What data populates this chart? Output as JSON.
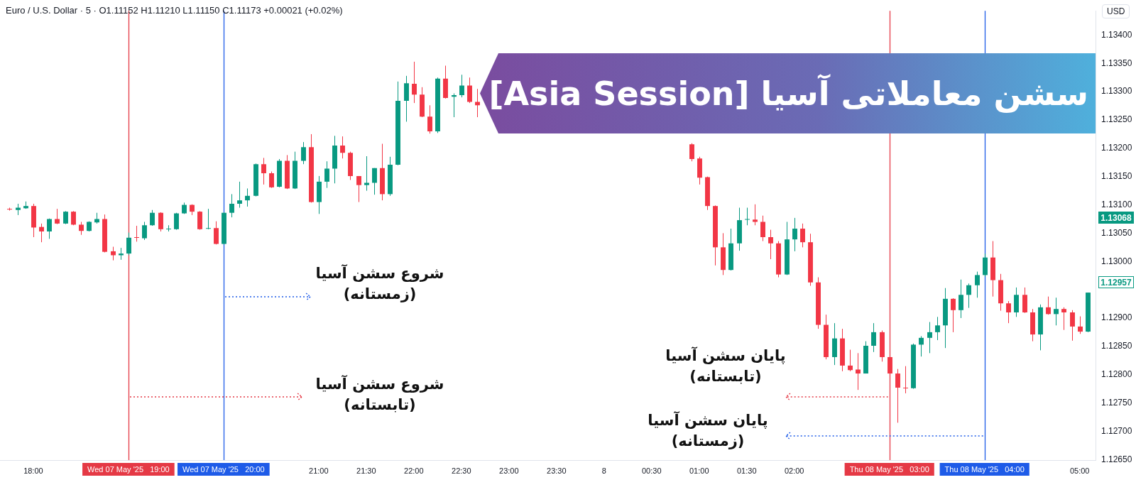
{
  "chart_data": {
    "type": "candlestick",
    "title": "سشن معاملاتی آسیا [Asia Session]",
    "subtitle": "Euro / U.S. Dollar · 5 · O1.11152 H1.11210 L1.11150 C1.11173 +0.00021 (+0.02%)",
    "x": [
      "2025-05-07T17:45",
      "2025-05-07T17:50",
      "2025-05-07T17:55",
      "2025-05-07T18:00",
      "2025-05-07T18:05",
      "2025-05-07T18:10",
      "2025-05-07T18:15",
      "2025-05-07T18:20",
      "2025-05-07T18:25",
      "2025-05-07T18:30",
      "2025-05-07T18:35",
      "2025-05-07T18:40",
      "2025-05-07T18:45",
      "2025-05-07T18:50",
      "2025-05-07T18:55",
      "2025-05-07T19:00",
      "2025-05-07T19:05",
      "2025-05-07T19:10",
      "2025-05-07T19:15",
      "2025-05-07T19:20",
      "2025-05-07T19:25",
      "2025-05-07T19:30",
      "2025-05-07T19:35",
      "2025-05-07T19:40",
      "2025-05-07T19:45",
      "2025-05-07T19:50",
      "2025-05-07T19:55",
      "2025-05-07T20:00",
      "2025-05-07T20:05",
      "2025-05-07T20:10",
      "2025-05-07T20:15",
      "2025-05-07T20:20",
      "2025-05-07T20:25",
      "2025-05-07T20:30",
      "2025-05-07T20:35",
      "2025-05-07T20:40",
      "2025-05-07T20:45",
      "2025-05-07T20:50",
      "2025-05-07T20:55",
      "2025-05-07T21:00",
      "2025-05-07T21:05",
      "2025-05-07T21:10",
      "2025-05-07T21:15",
      "2025-05-07T21:20",
      "2025-05-07T21:25",
      "2025-05-07T21:30",
      "2025-05-07T21:35",
      "2025-05-07T21:40",
      "2025-05-07T21:45",
      "2025-05-07T21:50",
      "2025-05-07T21:55",
      "2025-05-07T22:00",
      "2025-05-07T22:05",
      "2025-05-07T22:10",
      "2025-05-07T22:15",
      "2025-05-07T22:20",
      "2025-05-07T22:25",
      "2025-05-07T22:30",
      "2025-05-07T22:35",
      "2025-05-07T22:40",
      "2025-05-08T00:55",
      "2025-05-08T01:00",
      "2025-05-08T01:05",
      "2025-05-08T01:10",
      "2025-05-08T01:15",
      "2025-05-08T01:20",
      "2025-05-08T01:25",
      "2025-05-08T01:30",
      "2025-05-08T01:35",
      "2025-05-08T01:40",
      "2025-05-08T01:45",
      "2025-05-08T01:50",
      "2025-05-08T01:55",
      "2025-05-08T02:00",
      "2025-05-08T02:05",
      "2025-05-08T02:10",
      "2025-05-08T02:15",
      "2025-05-08T02:20",
      "2025-05-08T02:25",
      "2025-05-08T02:30",
      "2025-05-08T02:35",
      "2025-05-08T02:40",
      "2025-05-08T02:45",
      "2025-05-08T02:50",
      "2025-05-08T02:55",
      "2025-05-08T03:00",
      "2025-05-08T03:05",
      "2025-05-08T03:10",
      "2025-05-08T03:15",
      "2025-05-08T03:20",
      "2025-05-08T03:25",
      "2025-05-08T03:30",
      "2025-05-08T03:35",
      "2025-05-08T03:40",
      "2025-05-08T03:45",
      "2025-05-08T03:50",
      "2025-05-08T03:55",
      "2025-05-08T04:00",
      "2025-05-08T04:05",
      "2025-05-08T04:10",
      "2025-05-08T04:15",
      "2025-05-08T04:20",
      "2025-05-08T04:25",
      "2025-05-08T04:30",
      "2025-05-08T04:35",
      "2025-05-08T04:40",
      "2025-05-08T04:45",
      "2025-05-08T04:50",
      "2025-05-08T04:55",
      "2025-05-08T05:00",
      "2025-05-08T05:05"
    ],
    "ohlc": [
      [
        1.13093,
        1.13095,
        1.1309,
        1.13092
      ],
      [
        1.13091,
        1.13102,
        1.13082,
        1.13095
      ],
      [
        1.13094,
        1.13106,
        1.13093,
        1.13098
      ],
      [
        1.13098,
        1.13102,
        1.13043,
        1.1306
      ],
      [
        1.13061,
        1.13067,
        1.13034,
        1.13053
      ],
      [
        1.13053,
        1.13076,
        1.1304,
        1.13075
      ],
      [
        1.13075,
        1.13093,
        1.13066,
        1.13067
      ],
      [
        1.13067,
        1.13089,
        1.13066,
        1.13088
      ],
      [
        1.13088,
        1.13089,
        1.13064,
        1.13065
      ],
      [
        1.13065,
        1.1307,
        1.13047,
        1.13054
      ],
      [
        1.13054,
        1.13071,
        1.13053,
        1.1307
      ],
      [
        1.13069,
        1.13086,
        1.13067,
        1.13075
      ],
      [
        1.13075,
        1.13083,
        1.13016,
        1.13017
      ],
      [
        1.13018,
        1.13026,
        1.13002,
        1.13011
      ],
      [
        1.13011,
        1.13024,
        1.13003,
        1.13014
      ],
      [
        1.13014,
        1.13051,
        1.13011,
        1.13042
      ],
      [
        1.13043,
        1.13063,
        1.13035,
        1.13042
      ],
      [
        1.13041,
        1.1307,
        1.13038,
        1.13064
      ],
      [
        1.13064,
        1.13091,
        1.13063,
        1.13086
      ],
      [
        1.13086,
        1.13087,
        1.13053,
        1.13057
      ],
      [
        1.13057,
        1.13064,
        1.13053,
        1.13058
      ],
      [
        1.13057,
        1.13086,
        1.13056,
        1.13085
      ],
      [
        1.13085,
        1.13104,
        1.13084,
        1.131
      ],
      [
        1.131,
        1.13101,
        1.13082,
        1.13088
      ],
      [
        1.13088,
        1.13089,
        1.13056,
        1.13057
      ],
      [
        1.13058,
        1.13093,
        1.13057,
        1.13059
      ],
      [
        1.13059,
        1.13071,
        1.1303,
        1.13031
      ],
      [
        1.13031,
        1.13087,
        1.1303,
        1.13086
      ],
      [
        1.13086,
        1.13119,
        1.13078,
        1.13102
      ],
      [
        1.13102,
        1.13141,
        1.13095,
        1.13108
      ],
      [
        1.13108,
        1.13129,
        1.13097,
        1.13116
      ],
      [
        1.13116,
        1.13173,
        1.13115,
        1.13172
      ],
      [
        1.13172,
        1.13183,
        1.13136,
        1.13156
      ],
      [
        1.13156,
        1.13159,
        1.1313,
        1.13131
      ],
      [
        1.13132,
        1.13181,
        1.13131,
        1.13178
      ],
      [
        1.13178,
        1.13188,
        1.13128,
        1.13129
      ],
      [
        1.13129,
        1.13194,
        1.13128,
        1.13178
      ],
      [
        1.13178,
        1.13211,
        1.13172,
        1.13202
      ],
      [
        1.13202,
        1.13225,
        1.13104,
        1.13105
      ],
      [
        1.13105,
        1.13151,
        1.13084,
        1.13141
      ],
      [
        1.13141,
        1.13177,
        1.1313,
        1.13164
      ],
      [
        1.13164,
        1.13222,
        1.13138,
        1.13205
      ],
      [
        1.13205,
        1.13221,
        1.13182,
        1.13192
      ],
      [
        1.13192,
        1.13194,
        1.13144,
        1.13151
      ],
      [
        1.13151,
        1.13151,
        1.13105,
        1.13135
      ],
      [
        1.13135,
        1.13186,
        1.13125,
        1.13139
      ],
      [
        1.13139,
        1.13165,
        1.13118,
        1.13165
      ],
      [
        1.13165,
        1.13208,
        1.13108,
        1.13119
      ],
      [
        1.13119,
        1.13185,
        1.13116,
        1.13171
      ],
      [
        1.13171,
        1.13318,
        1.1317,
        1.13284
      ],
      [
        1.13284,
        1.13328,
        1.13247,
        1.13315
      ],
      [
        1.13314,
        1.13353,
        1.1328,
        1.13295
      ],
      [
        1.13295,
        1.13308,
        1.13255,
        1.13256
      ],
      [
        1.13256,
        1.13276,
        1.13226,
        1.1323
      ],
      [
        1.1323,
        1.13325,
        1.13227,
        1.13323
      ],
      [
        1.13323,
        1.13346,
        1.13288,
        1.13289
      ],
      [
        1.13291,
        1.13297,
        1.13255,
        1.13294
      ],
      [
        1.13294,
        1.1333,
        1.1329,
        1.13311
      ],
      [
        1.13311,
        1.13325,
        1.1328,
        1.13282
      ],
      [
        1.13282,
        1.13305,
        1.13255,
        1.13276
      ],
      [
        1.13207,
        1.13209,
        1.13177,
        1.13181
      ],
      [
        1.13182,
        1.13185,
        1.13136,
        1.13148
      ],
      [
        1.13149,
        1.1315,
        1.13091,
        1.13098
      ],
      [
        1.13098,
        1.13099,
        1.12993,
        1.13025
      ],
      [
        1.13025,
        1.1305,
        1.12976,
        1.12985
      ],
      [
        1.12985,
        1.13058,
        1.12984,
        1.13032
      ],
      [
        1.13032,
        1.13095,
        1.13019,
        1.13073
      ],
      [
        1.13074,
        1.13095,
        1.13064,
        1.13075
      ],
      [
        1.13074,
        1.13101,
        1.13064,
        1.1307
      ],
      [
        1.1307,
        1.13081,
        1.13036,
        1.13043
      ],
      [
        1.13043,
        1.13056,
        1.13004,
        1.13032
      ],
      [
        1.13032,
        1.13036,
        1.12972,
        1.12977
      ],
      [
        1.12977,
        1.1307,
        1.12976,
        1.13039
      ],
      [
        1.13039,
        1.13077,
        1.13018,
        1.13058
      ],
      [
        1.13058,
        1.13067,
        1.13025,
        1.13034
      ],
      [
        1.13034,
        1.13049,
        1.12957,
        1.12963
      ],
      [
        1.12963,
        1.12972,
        1.12881,
        1.12888
      ],
      [
        1.12888,
        1.12906,
        1.12827,
        1.12831
      ],
      [
        1.12831,
        1.12891,
        1.12817,
        1.12864
      ],
      [
        1.12864,
        1.12881,
        1.12806,
        1.12816
      ],
      [
        1.12816,
        1.12844,
        1.12806,
        1.12808
      ],
      [
        1.12809,
        1.12838,
        1.12773,
        1.12802
      ],
      [
        1.12802,
        1.12859,
        1.12802,
        1.12851
      ],
      [
        1.12851,
        1.12891,
        1.1284,
        1.12875
      ],
      [
        1.12875,
        1.12878,
        1.12823,
        1.12831
      ],
      [
        1.12831,
        1.12832,
        1.12801,
        1.12802
      ],
      [
        1.12802,
        1.1281,
        1.12715,
        1.12777
      ],
      [
        1.12777,
        1.12815,
        1.12767,
        1.12776
      ],
      [
        1.12776,
        1.12855,
        1.12775,
        1.12853
      ],
      [
        1.12853,
        1.12868,
        1.12832,
        1.12865
      ],
      [
        1.12865,
        1.12893,
        1.12838,
        1.12875
      ],
      [
        1.12875,
        1.12902,
        1.12861,
        1.12887
      ],
      [
        1.12887,
        1.12953,
        1.12847,
        1.12934
      ],
      [
        1.12934,
        1.12935,
        1.12875,
        1.12914
      ],
      [
        1.12914,
        1.12968,
        1.129,
        1.12941
      ],
      [
        1.12941,
        1.12961,
        1.12918,
        1.12958
      ],
      [
        1.12958,
        1.12982,
        1.12936,
        1.12976
      ],
      [
        1.12976,
        1.13014,
        1.12973,
        1.13007
      ],
      [
        1.13007,
        1.13036,
        1.12938,
        1.12967
      ],
      [
        1.12967,
        1.12978,
        1.12913,
        1.12926
      ],
      [
        1.12926,
        1.1293,
        1.12891,
        1.1291
      ],
      [
        1.1291,
        1.12954,
        1.12902,
        1.12941
      ],
      [
        1.12941,
        1.12954,
        1.12909,
        1.1291
      ],
      [
        1.1291,
        1.12916,
        1.12859,
        1.12871
      ],
      [
        1.12871,
        1.12924,
        1.12843,
        1.12919
      ],
      [
        1.12919,
        1.12938,
        1.12906,
        1.12907
      ],
      [
        1.12907,
        1.12936,
        1.12887,
        1.12916
      ],
      [
        1.12916,
        1.12919,
        1.12879,
        1.1291
      ],
      [
        1.1291,
        1.12914,
        1.1286,
        1.12885
      ],
      [
        1.12885,
        1.12903,
        1.12872,
        1.12876
      ],
      [
        1.12876,
        1.12945,
        1.12875,
        1.12945
      ]
    ],
    "colors": [
      "#f23645",
      "#089981",
      "#089981",
      "#f23645",
      "#f23645",
      "#089981",
      "#f23645",
      "#089981",
      "#f23645",
      "#f23645",
      "#089981",
      "#089981",
      "#f23645",
      "#f23645",
      "#089981",
      "#089981",
      "#f23645",
      "#089981",
      "#089981",
      "#f23645",
      "#089981",
      "#089981",
      "#089981",
      "#f23645",
      "#f23645",
      "#089981",
      "#f23645",
      "#089981",
      "#089981",
      "#089981",
      "#089981",
      "#089981",
      "#f23645",
      "#f23645",
      "#089981",
      "#f23645",
      "#089981",
      "#089981",
      "#f23645",
      "#089981",
      "#089981",
      "#089981",
      "#f23645",
      "#f23645",
      "#f23645",
      "#089981",
      "#089981",
      "#f23645",
      "#089981",
      "#089981",
      "#089981",
      "#f23645",
      "#f23645",
      "#f23645",
      "#089981",
      "#f23645",
      "#089981",
      "#089981",
      "#f23645",
      "#f23645",
      "#f23645",
      "#f23645",
      "#f23645",
      "#f23645",
      "#f23645",
      "#089981",
      "#089981",
      "#089981",
      "#f23645",
      "#f23645",
      "#f23645",
      "#f23645",
      "#089981",
      "#089981",
      "#f23645",
      "#f23645",
      "#f23645",
      "#f23645",
      "#089981",
      "#f23645",
      "#f23645",
      "#f23645",
      "#089981",
      "#089981",
      "#f23645",
      "#f23645",
      "#f23645",
      "#f23645",
      "#089981",
      "#089981",
      "#089981",
      "#089981",
      "#089981",
      "#f23645",
      "#089981",
      "#089981",
      "#089981",
      "#089981",
      "#f23645",
      "#f23645",
      "#f23645",
      "#089981",
      "#f23645",
      "#f23645",
      "#089981",
      "#f23645",
      "#089981",
      "#f23645",
      "#f23645",
      "#f23645",
      "#089981"
    ],
    "xlim": [
      "2025-05-07T17:39",
      "2025-05-08T05:10"
    ],
    "xticks": [
      {
        "value": "2025-05-07T18:00",
        "label": "18:00"
      },
      {
        "value": "2025-05-07T21:00",
        "label": "21:00"
      },
      {
        "value": "2025-05-07T21:30",
        "label": "21:30"
      },
      {
        "value": "2025-05-07T22:00",
        "label": "22:00"
      },
      {
        "value": "2025-05-07T22:30",
        "label": "22:30"
      },
      {
        "value": "2025-05-07T23:00",
        "label": "23:00"
      },
      {
        "value": "2025-05-07T23:30",
        "label": "23:30"
      },
      {
        "value": "2025-05-08T00:00",
        "label": "8"
      },
      {
        "value": "2025-05-08T00:30",
        "label": "00:30"
      },
      {
        "value": "2025-05-08T01:00",
        "label": "01:00"
      },
      {
        "value": "2025-05-08T01:30",
        "label": "01:30"
      },
      {
        "value": "2025-05-08T02:00",
        "label": "02:00"
      },
      {
        "value": "2025-05-08T05:00",
        "label": "05:00"
      }
    ],
    "ylim": [
      1.12649,
      1.13443
    ],
    "yticks": [
      {
        "value": 1.1265,
        "label": "1.12650"
      },
      {
        "value": 1.127,
        "label": "1.12700"
      },
      {
        "value": 1.1275,
        "label": "1.12750"
      },
      {
        "value": 1.128,
        "label": "1.12800"
      },
      {
        "value": 1.1285,
        "label": "1.12850"
      },
      {
        "value": 1.129,
        "label": "1.12900"
      },
      {
        "value": 1.13,
        "label": "1.13000"
      },
      {
        "value": 1.1305,
        "label": "1.13050"
      },
      {
        "value": 1.131,
        "label": "1.13100"
      },
      {
        "value": 1.1315,
        "label": "1.13150"
      },
      {
        "value": 1.132,
        "label": "1.13200"
      },
      {
        "value": 1.1325,
        "label": "1.13250"
      },
      {
        "value": 1.133,
        "label": "1.13300"
      },
      {
        "value": 1.1335,
        "label": "1.13350"
      },
      {
        "value": 1.134,
        "label": "1.13400"
      }
    ],
    "ref_lines": [
      {
        "axis": "x",
        "value": "2025-05-07T19:00",
        "label": "Wed 07 May '25   19:00",
        "color": "#e53945"
      },
      {
        "axis": "x",
        "value": "2025-05-07T20:00",
        "label": "Wed 07 May '25   20:00",
        "color": "#1e5be8"
      },
      {
        "axis": "x",
        "value": "2025-05-08T03:00",
        "label": "Thu 08 May '25   03:00",
        "color": "#e53945"
      },
      {
        "axis": "x",
        "value": "2025-05-08T04:00",
        "label": "Thu 08 May '25   04:00",
        "color": "#1e5be8"
      }
    ],
    "annotations": [
      {
        "text": "شروع سشن آسیا\n(زمستانه)",
        "x": "2025-05-07T20:00",
        "y": 1.12937
      },
      {
        "text": "شروع سشن آسیا\n(تابستانه)",
        "x": "2025-05-07T19:00",
        "y": 1.12761
      },
      {
        "text": "پایان سشن آسیا\n(تابستانه)",
        "x": "2025-05-08T03:00",
        "y": 1.12761
      },
      {
        "text": "پایان سشن آسیا\n(زمستانه)",
        "x": "2025-05-08T04:00",
        "y": 1.12692
      },
      "USD",
      "1.13068",
      "1.12957"
    ],
    "legend": false
  }
}
